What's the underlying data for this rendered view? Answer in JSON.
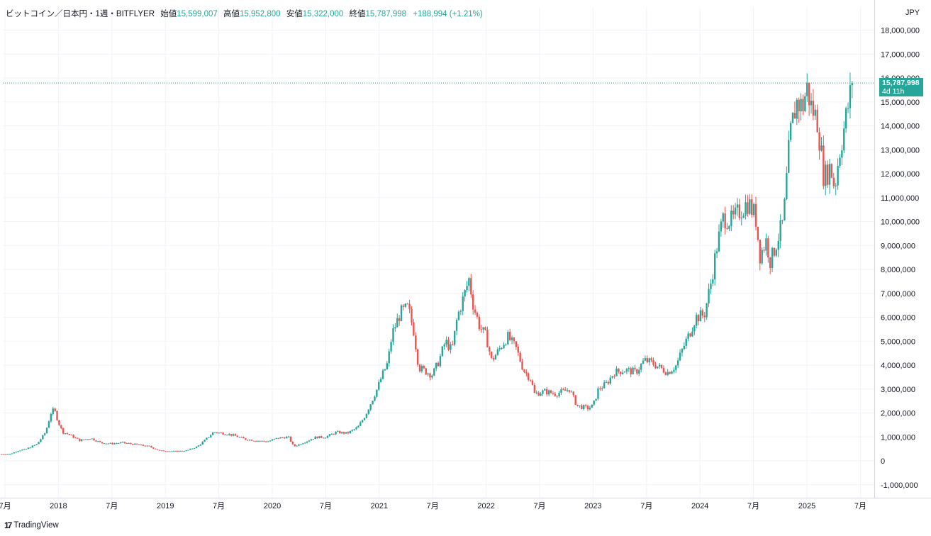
{
  "header": {
    "symbol": "ビットコイン／日本円・1週・BITFLYER",
    "open_label": "始値",
    "open_value": "15,599,007",
    "high_label": "高値",
    "high_value": "15,952,800",
    "low_label": "安値",
    "low_value": "15,322,000",
    "close_label": "終値",
    "close_value": "15,787,998",
    "change": "+188,994 (+1.21%)"
  },
  "currency_label": "JPY",
  "price_tag": {
    "price": "15,787,998",
    "countdown": "4d 11h"
  },
  "brand": {
    "icon": "17",
    "name": "TradingView"
  },
  "colors": {
    "up": "#26a69a",
    "down": "#ef5350",
    "grid": "#f0f3fa",
    "axis_text": "#131722"
  },
  "chart_data": {
    "type": "candlestick",
    "title": "ビットコイン／日本円・1週・BITFLYER",
    "ylim": [
      -1200000,
      18400000
    ],
    "y_ticks": [
      {
        "value": 18000000,
        "label": "18,000,000"
      },
      {
        "value": 17000000,
        "label": "17,000,000"
      },
      {
        "value": 16000000,
        "label": "16,000,000"
      },
      {
        "value": 15000000,
        "label": "15,000,000"
      },
      {
        "value": 14000000,
        "label": "14,000,000"
      },
      {
        "value": 13000000,
        "label": "13,000,000"
      },
      {
        "value": 12000000,
        "label": "12,000,000"
      },
      {
        "value": 11000000,
        "label": "11,000,000"
      },
      {
        "value": 10000000,
        "label": "10,000,000"
      },
      {
        "value": 9000000,
        "label": "9,000,000"
      },
      {
        "value": 8000000,
        "label": "8,000,000"
      },
      {
        "value": 7000000,
        "label": "7,000,000"
      },
      {
        "value": 6000000,
        "label": "6,000,000"
      },
      {
        "value": 5000000,
        "label": "5,000,000"
      },
      {
        "value": 4000000,
        "label": "4,000,000"
      },
      {
        "value": 3000000,
        "label": "3,000,000"
      },
      {
        "value": 2000000,
        "label": "2,000,000"
      },
      {
        "value": 1000000,
        "label": "1,000,000"
      },
      {
        "value": 0,
        "label": "0"
      },
      {
        "value": -1000000,
        "label": "-1,000,000"
      }
    ],
    "x_range": [
      2017.48,
      2025.63
    ],
    "x_ticks": [
      {
        "value": 2017.5,
        "label": "7月"
      },
      {
        "value": 2018.0,
        "label": "2018"
      },
      {
        "value": 2018.5,
        "label": "7月"
      },
      {
        "value": 2019.0,
        "label": "2019"
      },
      {
        "value": 2019.5,
        "label": "7月"
      },
      {
        "value": 2020.0,
        "label": "2020"
      },
      {
        "value": 2020.5,
        "label": "7月"
      },
      {
        "value": 2021.0,
        "label": "2021"
      },
      {
        "value": 2021.5,
        "label": "7月"
      },
      {
        "value": 2022.0,
        "label": "2022"
      },
      {
        "value": 2022.5,
        "label": "7月"
      },
      {
        "value": 2023.0,
        "label": "2023"
      },
      {
        "value": 2023.5,
        "label": "7月"
      },
      {
        "value": 2024.0,
        "label": "2024"
      },
      {
        "value": 2024.5,
        "label": "7月"
      },
      {
        "value": 2025.0,
        "label": "2025"
      },
      {
        "value": 2025.5,
        "label": "7月"
      }
    ],
    "last_price": 15787998,
    "price_path": [
      [
        2017.47,
        280000
      ],
      [
        2017.55,
        290000
      ],
      [
        2017.62,
        420000
      ],
      [
        2017.7,
        500000
      ],
      [
        2017.8,
        700000
      ],
      [
        2017.88,
        1200000
      ],
      [
        2017.93,
        2000000
      ],
      [
        2017.96,
        2150000
      ],
      [
        2018.0,
        1600000
      ],
      [
        2018.04,
        1200000
      ],
      [
        2018.1,
        1100000
      ],
      [
        2018.2,
        850000
      ],
      [
        2018.3,
        950000
      ],
      [
        2018.4,
        750000
      ],
      [
        2018.5,
        720000
      ],
      [
        2018.6,
        760000
      ],
      [
        2018.7,
        700000
      ],
      [
        2018.85,
        600000
      ],
      [
        2018.95,
        420000
      ],
      [
        2019.1,
        400000
      ],
      [
        2019.2,
        430000
      ],
      [
        2019.3,
        600000
      ],
      [
        2019.38,
        900000
      ],
      [
        2019.45,
        1200000
      ],
      [
        2019.55,
        1150000
      ],
      [
        2019.65,
        1050000
      ],
      [
        2019.75,
        900000
      ],
      [
        2019.85,
        850000
      ],
      [
        2019.95,
        800000
      ],
      [
        2020.05,
        950000
      ],
      [
        2020.15,
        1000000
      ],
      [
        2020.2,
        600000
      ],
      [
        2020.3,
        780000
      ],
      [
        2020.4,
        980000
      ],
      [
        2020.5,
        1000000
      ],
      [
        2020.6,
        1200000
      ],
      [
        2020.7,
        1150000
      ],
      [
        2020.8,
        1400000
      ],
      [
        2020.87,
        1900000
      ],
      [
        2020.93,
        2500000
      ],
      [
        2020.98,
        3000000
      ],
      [
        2021.03,
        3600000
      ],
      [
        2021.08,
        4100000
      ],
      [
        2021.12,
        5300000
      ],
      [
        2021.2,
        6200000
      ],
      [
        2021.27,
        6400000
      ],
      [
        2021.32,
        5500000
      ],
      [
        2021.37,
        3900000
      ],
      [
        2021.45,
        3700000
      ],
      [
        2021.5,
        3600000
      ],
      [
        2021.56,
        4200000
      ],
      [
        2021.62,
        5000000
      ],
      [
        2021.68,
        4600000
      ],
      [
        2021.73,
        6000000
      ],
      [
        2021.8,
        7000000
      ],
      [
        2021.84,
        7600000
      ],
      [
        2021.88,
        6500000
      ],
      [
        2021.94,
        5600000
      ],
      [
        2022.0,
        5200000
      ],
      [
        2022.05,
        4200000
      ],
      [
        2022.1,
        4500000
      ],
      [
        2022.2,
        5200000
      ],
      [
        2022.28,
        4700000
      ],
      [
        2022.35,
        3800000
      ],
      [
        2022.42,
        3400000
      ],
      [
        2022.45,
        2800000
      ],
      [
        2022.55,
        2900000
      ],
      [
        2022.65,
        2800000
      ],
      [
        2022.72,
        2900000
      ],
      [
        2022.78,
        3000000
      ],
      [
        2022.85,
        2300000
      ],
      [
        2022.95,
        2200000
      ],
      [
        2023.0,
        2300000
      ],
      [
        2023.05,
        3000000
      ],
      [
        2023.12,
        3200000
      ],
      [
        2023.2,
        3700000
      ],
      [
        2023.3,
        3800000
      ],
      [
        2023.4,
        3700000
      ],
      [
        2023.48,
        4200000
      ],
      [
        2023.55,
        4100000
      ],
      [
        2023.62,
        3900000
      ],
      [
        2023.7,
        3700000
      ],
      [
        2023.78,
        4000000
      ],
      [
        2023.84,
        4700000
      ],
      [
        2023.9,
        5300000
      ],
      [
        2023.96,
        6000000
      ],
      [
        2024.04,
        6100000
      ],
      [
        2024.1,
        7400000
      ],
      [
        2024.16,
        9000000
      ],
      [
        2024.22,
        10200000
      ],
      [
        2024.3,
        10000000
      ],
      [
        2024.38,
        10500000
      ],
      [
        2024.45,
        10800000
      ],
      [
        2024.52,
        10200000
      ],
      [
        2024.56,
        8600000
      ],
      [
        2024.62,
        9200000
      ],
      [
        2024.66,
        8300000
      ],
      [
        2024.72,
        9200000
      ],
      [
        2024.78,
        10000000
      ],
      [
        2024.84,
        13500000
      ],
      [
        2024.9,
        15000000
      ],
      [
        2024.96,
        14800000
      ],
      [
        2025.0,
        15600000
      ],
      [
        2025.04,
        14800000
      ],
      [
        2025.1,
        14200000
      ],
      [
        2025.16,
        11800000
      ],
      [
        2025.22,
        12300000
      ],
      [
        2025.26,
        11400000
      ],
      [
        2025.3,
        12800000
      ],
      [
        2025.36,
        14200000
      ],
      [
        2025.4,
        15200000
      ],
      [
        2025.44,
        15787998
      ]
    ],
    "annotations": [
      "Last price 15,787,998",
      "4d 11h to candle close"
    ]
  }
}
